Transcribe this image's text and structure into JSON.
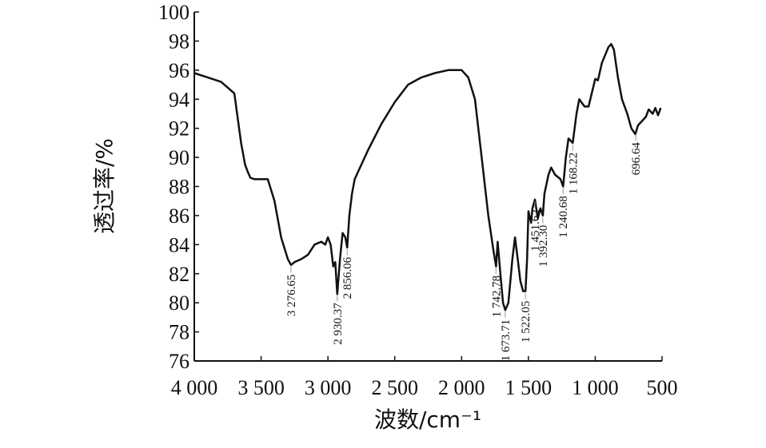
{
  "chart_data": {
    "type": "line",
    "xlabel": "波数/cm⁻¹",
    "ylabel": "透过率/%",
    "x": [
      4000,
      3900,
      3800,
      3750,
      3700,
      3650,
      3620,
      3600,
      3580,
      3550,
      3450,
      3400,
      3350,
      3300,
      3276,
      3250,
      3200,
      3150,
      3100,
      3050,
      3020,
      3000,
      2980,
      2960,
      2945,
      2930,
      2910,
      2890,
      2870,
      2856,
      2840,
      2820,
      2800,
      2700,
      2600,
      2500,
      2400,
      2300,
      2200,
      2100,
      2000,
      1950,
      1900,
      1850,
      1800,
      1760,
      1742,
      1730,
      1710,
      1690,
      1673,
      1650,
      1620,
      1600,
      1580,
      1560,
      1540,
      1522,
      1510,
      1500,
      1480,
      1470,
      1451,
      1430,
      1410,
      1392,
      1380,
      1350,
      1330,
      1300,
      1260,
      1240,
      1220,
      1200,
      1168,
      1140,
      1120,
      1080,
      1050,
      1000,
      980,
      950,
      900,
      880,
      860,
      830,
      800,
      760,
      730,
      700,
      680,
      650,
      620,
      600,
      570,
      550,
      530,
      510
    ],
    "series": [
      {
        "color": "#111111",
        "values": [
          95.8,
          95.5,
          95.2,
          94.8,
          94.4,
          91,
          89.5,
          89,
          88.6,
          88.5,
          88.5,
          87,
          84.5,
          83,
          82.6,
          82.8,
          83,
          83.3,
          84,
          84.2,
          84,
          84.5,
          84,
          82.5,
          82.8,
          80.6,
          83,
          84.8,
          84.5,
          83.8,
          86,
          87.5,
          88.5,
          90.5,
          92.3,
          93.8,
          95,
          95.5,
          95.8,
          96,
          96,
          95.5,
          94,
          90,
          86,
          83.5,
          82.5,
          84.2,
          82,
          80,
          79.5,
          80,
          83,
          84.5,
          83,
          81.5,
          80.8,
          80.8,
          83,
          86.3,
          85.5,
          86.5,
          87.1,
          85.8,
          86.5,
          86,
          87.5,
          88.8,
          89.3,
          88.8,
          88.5,
          88,
          90,
          91.3,
          91,
          93,
          94,
          93.5,
          93.5,
          95.4,
          95.3,
          96.5,
          97.6,
          97.8,
          97.4,
          95.5,
          94,
          93,
          92,
          91.6,
          92.2,
          92.5,
          92.8,
          93.3,
          93,
          93.4,
          92.9,
          93.4
        ]
      }
    ],
    "xlim": [
      4000,
      500
    ],
    "xticks": [
      {
        "value": 4000,
        "label": "4 000"
      },
      {
        "value": 3500,
        "label": "3 500"
      },
      {
        "value": 3000,
        "label": "3 000"
      },
      {
        "value": 2500,
        "label": "2 500"
      },
      {
        "value": 2000,
        "label": "2 000"
      },
      {
        "value": 1500,
        "label": "1 500"
      },
      {
        "value": 1000,
        "label": "1 000"
      },
      500
    ],
    "ylim": [
      76,
      100
    ],
    "yticks": [
      76,
      78,
      80,
      82,
      84,
      86,
      88,
      90,
      92,
      94,
      96,
      98,
      100
    ],
    "annotations": [
      {
        "x": 3276.65,
        "text": "3 276.65"
      },
      {
        "x": 2930.37,
        "text": "2 930.37"
      },
      {
        "x": 2856.06,
        "text": "2 856.06"
      },
      {
        "x": 1742.78,
        "text": "1 742.78"
      },
      {
        "x": 1673.71,
        "text": "1 673.71"
      },
      {
        "x": 1522.05,
        "text": "1 522.05"
      },
      {
        "x": 1451.62,
        "text": "1 451.62"
      },
      {
        "x": 1392.3,
        "text": "1 392.30"
      },
      {
        "x": 1240.68,
        "text": "1 240.68"
      },
      {
        "x": 1168.22,
        "text": "1 168.22"
      },
      {
        "x": 696.64,
        "text": "696.64"
      }
    ]
  }
}
